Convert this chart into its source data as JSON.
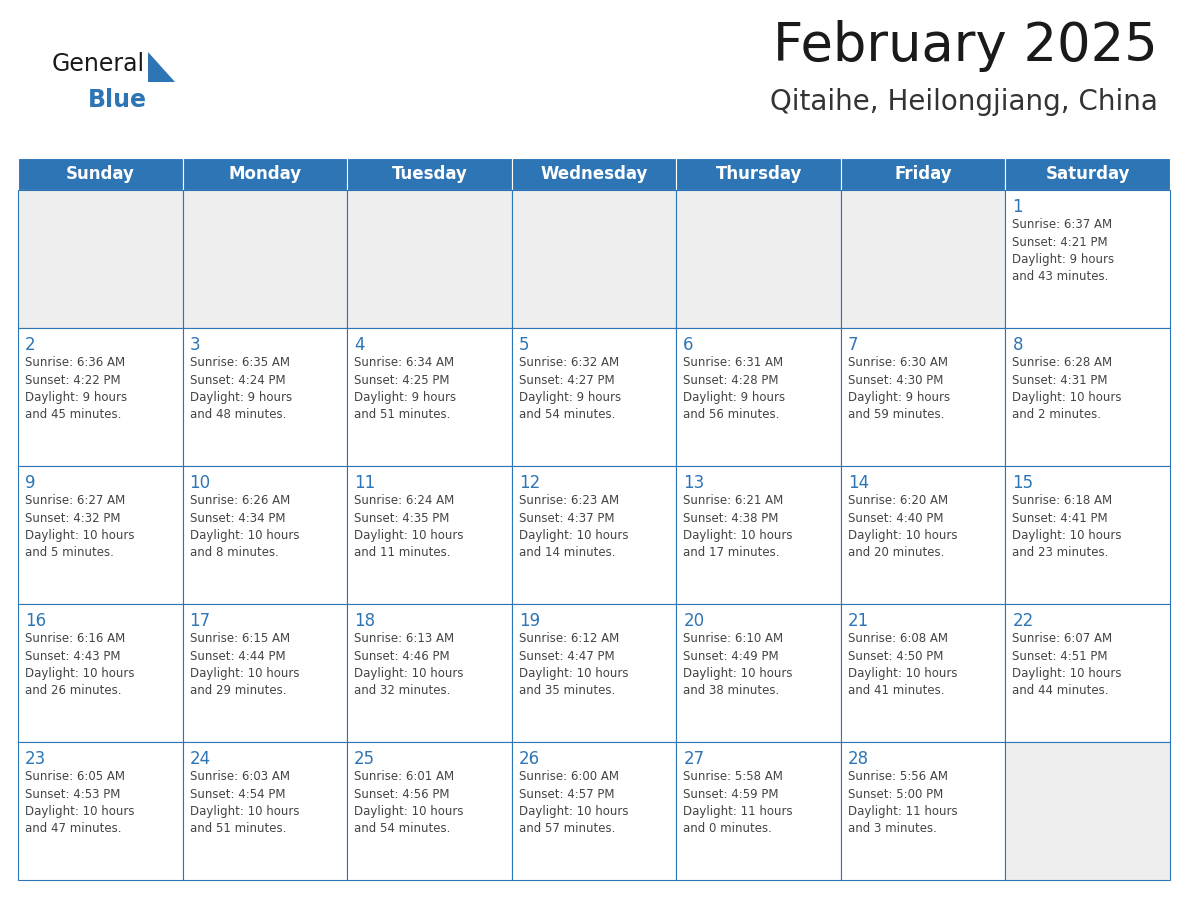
{
  "title": "February 2025",
  "subtitle": "Qitaihe, Heilongjiang, China",
  "header_color": "#2e75b6",
  "header_text_color": "#ffffff",
  "cell_bg_color": "#ffffff",
  "cell_empty_bg": "#eeeeee",
  "cell_border_color": "#2e75b6",
  "day_number_color": "#2e75b6",
  "cell_text_color": "#444444",
  "days_of_week": [
    "Sunday",
    "Monday",
    "Tuesday",
    "Wednesday",
    "Thursday",
    "Friday",
    "Saturday"
  ],
  "weeks": [
    [
      {
        "day": "",
        "info": ""
      },
      {
        "day": "",
        "info": ""
      },
      {
        "day": "",
        "info": ""
      },
      {
        "day": "",
        "info": ""
      },
      {
        "day": "",
        "info": ""
      },
      {
        "day": "",
        "info": ""
      },
      {
        "day": "1",
        "info": "Sunrise: 6:37 AM\nSunset: 4:21 PM\nDaylight: 9 hours\nand 43 minutes."
      }
    ],
    [
      {
        "day": "2",
        "info": "Sunrise: 6:36 AM\nSunset: 4:22 PM\nDaylight: 9 hours\nand 45 minutes."
      },
      {
        "day": "3",
        "info": "Sunrise: 6:35 AM\nSunset: 4:24 PM\nDaylight: 9 hours\nand 48 minutes."
      },
      {
        "day": "4",
        "info": "Sunrise: 6:34 AM\nSunset: 4:25 PM\nDaylight: 9 hours\nand 51 minutes."
      },
      {
        "day": "5",
        "info": "Sunrise: 6:32 AM\nSunset: 4:27 PM\nDaylight: 9 hours\nand 54 minutes."
      },
      {
        "day": "6",
        "info": "Sunrise: 6:31 AM\nSunset: 4:28 PM\nDaylight: 9 hours\nand 56 minutes."
      },
      {
        "day": "7",
        "info": "Sunrise: 6:30 AM\nSunset: 4:30 PM\nDaylight: 9 hours\nand 59 minutes."
      },
      {
        "day": "8",
        "info": "Sunrise: 6:28 AM\nSunset: 4:31 PM\nDaylight: 10 hours\nand 2 minutes."
      }
    ],
    [
      {
        "day": "9",
        "info": "Sunrise: 6:27 AM\nSunset: 4:32 PM\nDaylight: 10 hours\nand 5 minutes."
      },
      {
        "day": "10",
        "info": "Sunrise: 6:26 AM\nSunset: 4:34 PM\nDaylight: 10 hours\nand 8 minutes."
      },
      {
        "day": "11",
        "info": "Sunrise: 6:24 AM\nSunset: 4:35 PM\nDaylight: 10 hours\nand 11 minutes."
      },
      {
        "day": "12",
        "info": "Sunrise: 6:23 AM\nSunset: 4:37 PM\nDaylight: 10 hours\nand 14 minutes."
      },
      {
        "day": "13",
        "info": "Sunrise: 6:21 AM\nSunset: 4:38 PM\nDaylight: 10 hours\nand 17 minutes."
      },
      {
        "day": "14",
        "info": "Sunrise: 6:20 AM\nSunset: 4:40 PM\nDaylight: 10 hours\nand 20 minutes."
      },
      {
        "day": "15",
        "info": "Sunrise: 6:18 AM\nSunset: 4:41 PM\nDaylight: 10 hours\nand 23 minutes."
      }
    ],
    [
      {
        "day": "16",
        "info": "Sunrise: 6:16 AM\nSunset: 4:43 PM\nDaylight: 10 hours\nand 26 minutes."
      },
      {
        "day": "17",
        "info": "Sunrise: 6:15 AM\nSunset: 4:44 PM\nDaylight: 10 hours\nand 29 minutes."
      },
      {
        "day": "18",
        "info": "Sunrise: 6:13 AM\nSunset: 4:46 PM\nDaylight: 10 hours\nand 32 minutes."
      },
      {
        "day": "19",
        "info": "Sunrise: 6:12 AM\nSunset: 4:47 PM\nDaylight: 10 hours\nand 35 minutes."
      },
      {
        "day": "20",
        "info": "Sunrise: 6:10 AM\nSunset: 4:49 PM\nDaylight: 10 hours\nand 38 minutes."
      },
      {
        "day": "21",
        "info": "Sunrise: 6:08 AM\nSunset: 4:50 PM\nDaylight: 10 hours\nand 41 minutes."
      },
      {
        "day": "22",
        "info": "Sunrise: 6:07 AM\nSunset: 4:51 PM\nDaylight: 10 hours\nand 44 minutes."
      }
    ],
    [
      {
        "day": "23",
        "info": "Sunrise: 6:05 AM\nSunset: 4:53 PM\nDaylight: 10 hours\nand 47 minutes."
      },
      {
        "day": "24",
        "info": "Sunrise: 6:03 AM\nSunset: 4:54 PM\nDaylight: 10 hours\nand 51 minutes."
      },
      {
        "day": "25",
        "info": "Sunrise: 6:01 AM\nSunset: 4:56 PM\nDaylight: 10 hours\nand 54 minutes."
      },
      {
        "day": "26",
        "info": "Sunrise: 6:00 AM\nSunset: 4:57 PM\nDaylight: 10 hours\nand 57 minutes."
      },
      {
        "day": "27",
        "info": "Sunrise: 5:58 AM\nSunset: 4:59 PM\nDaylight: 11 hours\nand 0 minutes."
      },
      {
        "day": "28",
        "info": "Sunrise: 5:56 AM\nSunset: 5:00 PM\nDaylight: 11 hours\nand 3 minutes."
      },
      {
        "day": "",
        "info": ""
      }
    ]
  ],
  "logo_color_general": "#1a1a1a",
  "logo_color_blue": "#2e75b6",
  "logo_triangle_color": "#2e75b6",
  "title_fontsize": 38,
  "subtitle_fontsize": 20,
  "header_fontsize": 12,
  "day_num_fontsize": 12,
  "info_fontsize": 8.5
}
